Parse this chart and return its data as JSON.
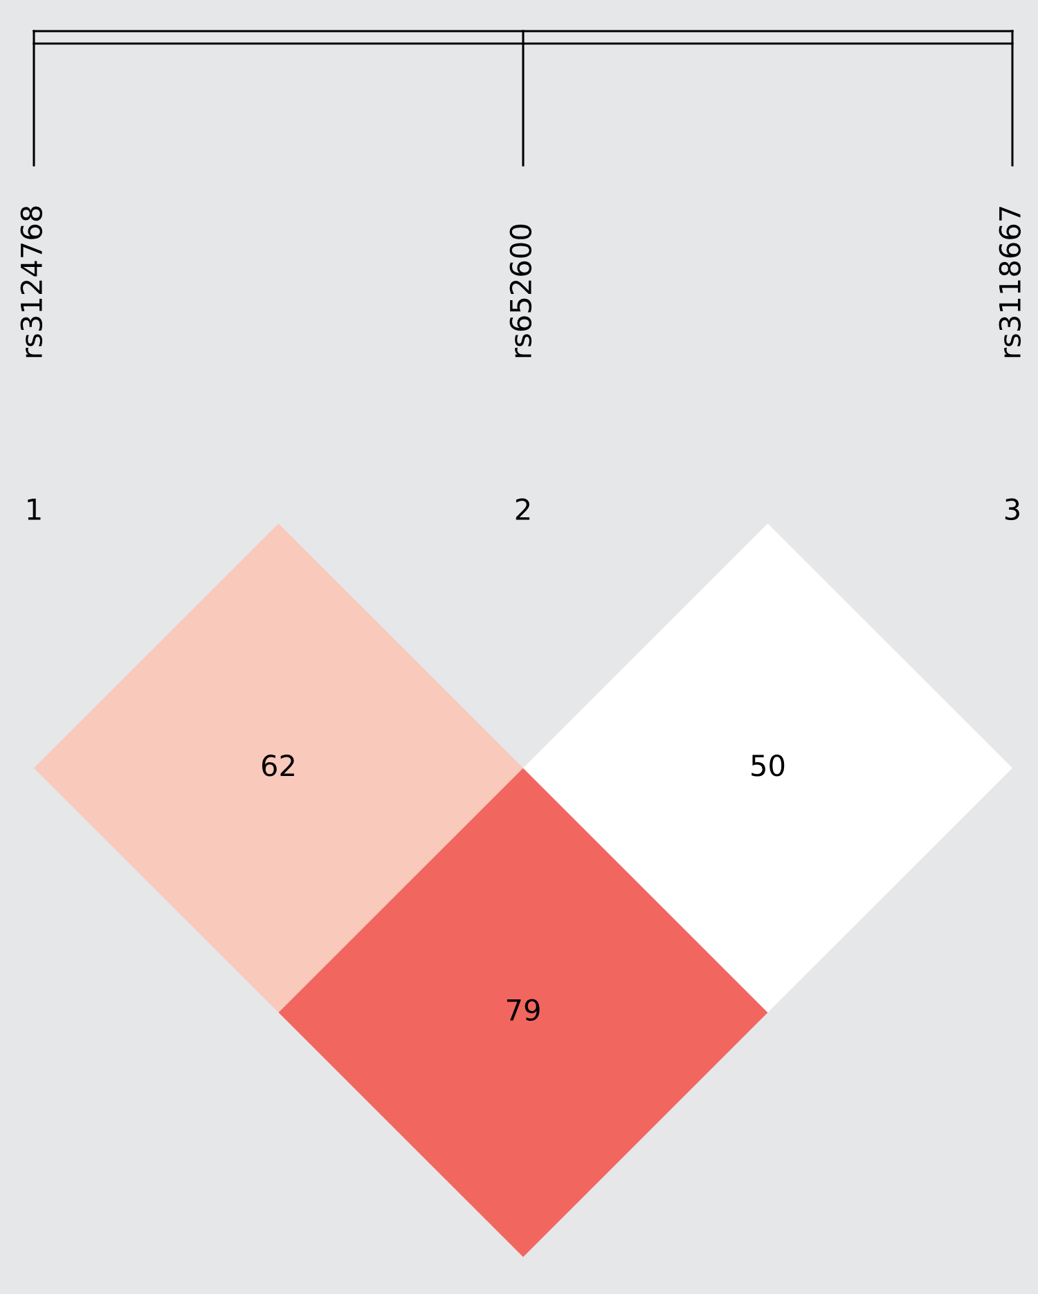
{
  "chart_data": {
    "type": "other",
    "categories": [
      "rs3124768",
      "rs652600",
      "rs3118667"
    ],
    "annotations": [
      "1",
      "2",
      "3"
    ],
    "values": [
      62,
      79,
      50
    ],
    "colors": [
      "#f9c9bc",
      "#f26660",
      "#ffffff"
    ],
    "data_labels": true
  }
}
